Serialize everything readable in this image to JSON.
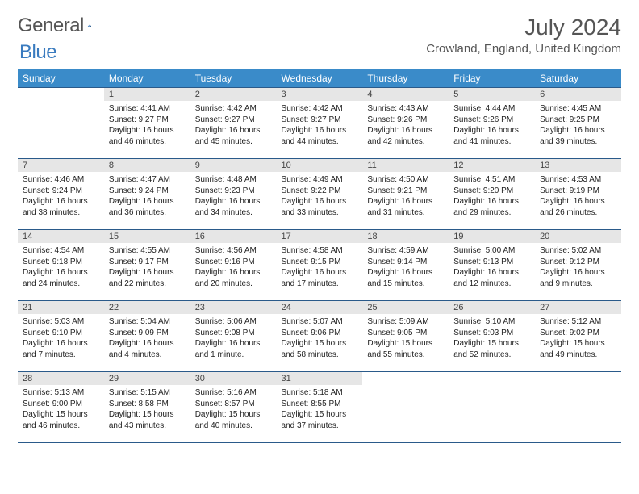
{
  "logo": {
    "word1": "General",
    "word2": "Blue"
  },
  "title": "July 2024",
  "location": "Crowland, England, United Kingdom",
  "colors": {
    "header_bg": "#3a8bc9",
    "header_text": "#ffffff",
    "rule": "#2a5a8a",
    "daynum_bg": "#e6e6e6",
    "text": "#333333",
    "logo_accent": "#3a7bbf"
  },
  "day_headers": [
    "Sunday",
    "Monday",
    "Tuesday",
    "Wednesday",
    "Thursday",
    "Friday",
    "Saturday"
  ],
  "weeks": [
    [
      null,
      {
        "n": "1",
        "sr": "Sunrise: 4:41 AM",
        "ss": "Sunset: 9:27 PM",
        "dl1": "Daylight: 16 hours",
        "dl2": "and 46 minutes."
      },
      {
        "n": "2",
        "sr": "Sunrise: 4:42 AM",
        "ss": "Sunset: 9:27 PM",
        "dl1": "Daylight: 16 hours",
        "dl2": "and 45 minutes."
      },
      {
        "n": "3",
        "sr": "Sunrise: 4:42 AM",
        "ss": "Sunset: 9:27 PM",
        "dl1": "Daylight: 16 hours",
        "dl2": "and 44 minutes."
      },
      {
        "n": "4",
        "sr": "Sunrise: 4:43 AM",
        "ss": "Sunset: 9:26 PM",
        "dl1": "Daylight: 16 hours",
        "dl2": "and 42 minutes."
      },
      {
        "n": "5",
        "sr": "Sunrise: 4:44 AM",
        "ss": "Sunset: 9:26 PM",
        "dl1": "Daylight: 16 hours",
        "dl2": "and 41 minutes."
      },
      {
        "n": "6",
        "sr": "Sunrise: 4:45 AM",
        "ss": "Sunset: 9:25 PM",
        "dl1": "Daylight: 16 hours",
        "dl2": "and 39 minutes."
      }
    ],
    [
      {
        "n": "7",
        "sr": "Sunrise: 4:46 AM",
        "ss": "Sunset: 9:24 PM",
        "dl1": "Daylight: 16 hours",
        "dl2": "and 38 minutes."
      },
      {
        "n": "8",
        "sr": "Sunrise: 4:47 AM",
        "ss": "Sunset: 9:24 PM",
        "dl1": "Daylight: 16 hours",
        "dl2": "and 36 minutes."
      },
      {
        "n": "9",
        "sr": "Sunrise: 4:48 AM",
        "ss": "Sunset: 9:23 PM",
        "dl1": "Daylight: 16 hours",
        "dl2": "and 34 minutes."
      },
      {
        "n": "10",
        "sr": "Sunrise: 4:49 AM",
        "ss": "Sunset: 9:22 PM",
        "dl1": "Daylight: 16 hours",
        "dl2": "and 33 minutes."
      },
      {
        "n": "11",
        "sr": "Sunrise: 4:50 AM",
        "ss": "Sunset: 9:21 PM",
        "dl1": "Daylight: 16 hours",
        "dl2": "and 31 minutes."
      },
      {
        "n": "12",
        "sr": "Sunrise: 4:51 AM",
        "ss": "Sunset: 9:20 PM",
        "dl1": "Daylight: 16 hours",
        "dl2": "and 29 minutes."
      },
      {
        "n": "13",
        "sr": "Sunrise: 4:53 AM",
        "ss": "Sunset: 9:19 PM",
        "dl1": "Daylight: 16 hours",
        "dl2": "and 26 minutes."
      }
    ],
    [
      {
        "n": "14",
        "sr": "Sunrise: 4:54 AM",
        "ss": "Sunset: 9:18 PM",
        "dl1": "Daylight: 16 hours",
        "dl2": "and 24 minutes."
      },
      {
        "n": "15",
        "sr": "Sunrise: 4:55 AM",
        "ss": "Sunset: 9:17 PM",
        "dl1": "Daylight: 16 hours",
        "dl2": "and 22 minutes."
      },
      {
        "n": "16",
        "sr": "Sunrise: 4:56 AM",
        "ss": "Sunset: 9:16 PM",
        "dl1": "Daylight: 16 hours",
        "dl2": "and 20 minutes."
      },
      {
        "n": "17",
        "sr": "Sunrise: 4:58 AM",
        "ss": "Sunset: 9:15 PM",
        "dl1": "Daylight: 16 hours",
        "dl2": "and 17 minutes."
      },
      {
        "n": "18",
        "sr": "Sunrise: 4:59 AM",
        "ss": "Sunset: 9:14 PM",
        "dl1": "Daylight: 16 hours",
        "dl2": "and 15 minutes."
      },
      {
        "n": "19",
        "sr": "Sunrise: 5:00 AM",
        "ss": "Sunset: 9:13 PM",
        "dl1": "Daylight: 16 hours",
        "dl2": "and 12 minutes."
      },
      {
        "n": "20",
        "sr": "Sunrise: 5:02 AM",
        "ss": "Sunset: 9:12 PM",
        "dl1": "Daylight: 16 hours",
        "dl2": "and 9 minutes."
      }
    ],
    [
      {
        "n": "21",
        "sr": "Sunrise: 5:03 AM",
        "ss": "Sunset: 9:10 PM",
        "dl1": "Daylight: 16 hours",
        "dl2": "and 7 minutes."
      },
      {
        "n": "22",
        "sr": "Sunrise: 5:04 AM",
        "ss": "Sunset: 9:09 PM",
        "dl1": "Daylight: 16 hours",
        "dl2": "and 4 minutes."
      },
      {
        "n": "23",
        "sr": "Sunrise: 5:06 AM",
        "ss": "Sunset: 9:08 PM",
        "dl1": "Daylight: 16 hours",
        "dl2": "and 1 minute."
      },
      {
        "n": "24",
        "sr": "Sunrise: 5:07 AM",
        "ss": "Sunset: 9:06 PM",
        "dl1": "Daylight: 15 hours",
        "dl2": "and 58 minutes."
      },
      {
        "n": "25",
        "sr": "Sunrise: 5:09 AM",
        "ss": "Sunset: 9:05 PM",
        "dl1": "Daylight: 15 hours",
        "dl2": "and 55 minutes."
      },
      {
        "n": "26",
        "sr": "Sunrise: 5:10 AM",
        "ss": "Sunset: 9:03 PM",
        "dl1": "Daylight: 15 hours",
        "dl2": "and 52 minutes."
      },
      {
        "n": "27",
        "sr": "Sunrise: 5:12 AM",
        "ss": "Sunset: 9:02 PM",
        "dl1": "Daylight: 15 hours",
        "dl2": "and 49 minutes."
      }
    ],
    [
      {
        "n": "28",
        "sr": "Sunrise: 5:13 AM",
        "ss": "Sunset: 9:00 PM",
        "dl1": "Daylight: 15 hours",
        "dl2": "and 46 minutes."
      },
      {
        "n": "29",
        "sr": "Sunrise: 5:15 AM",
        "ss": "Sunset: 8:58 PM",
        "dl1": "Daylight: 15 hours",
        "dl2": "and 43 minutes."
      },
      {
        "n": "30",
        "sr": "Sunrise: 5:16 AM",
        "ss": "Sunset: 8:57 PM",
        "dl1": "Daylight: 15 hours",
        "dl2": "and 40 minutes."
      },
      {
        "n": "31",
        "sr": "Sunrise: 5:18 AM",
        "ss": "Sunset: 8:55 PM",
        "dl1": "Daylight: 15 hours",
        "dl2": "and 37 minutes."
      },
      null,
      null,
      null
    ]
  ]
}
